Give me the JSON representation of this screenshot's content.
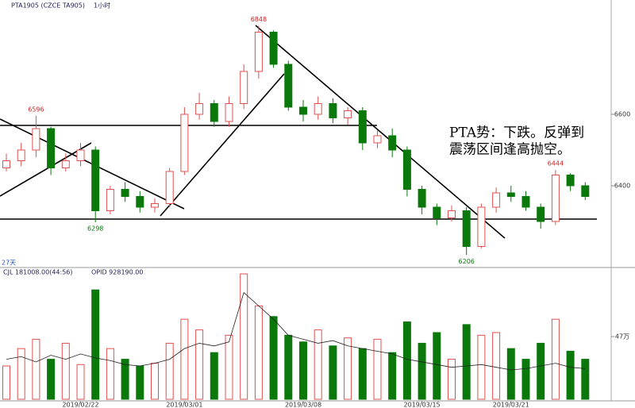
{
  "chart_data": {
    "type": "candlestick",
    "title": "PTA1905 (CZCE TA905)",
    "interval": "1小时",
    "period_label": "27天",
    "volume_header": "CJL 181008.00(44:56)",
    "oi_header": "OPID 928190.00",
    "annotation": [
      "PTA势：下跌。反弹到",
      "震荡区间逢高抛空。"
    ],
    "categories": [
      null,
      null,
      null,
      null,
      null,
      "2019/02/22",
      null,
      null,
      null,
      null,
      null,
      null,
      "2019/03/01",
      null,
      null,
      null,
      null,
      null,
      null,
      null,
      "2019/03/08",
      null,
      null,
      null,
      null,
      null,
      null,
      null,
      "2019/03/15",
      null,
      null,
      null,
      null,
      null,
      "2019/03/21",
      null,
      null,
      null,
      null,
      null
    ],
    "opens": [
      6450,
      6470,
      6500,
      6560,
      6450,
      6470,
      6500,
      6330,
      6390,
      6370,
      6340,
      6350,
      6440,
      6600,
      6630,
      6580,
      6630,
      6720,
      6830,
      6740,
      6620,
      6600,
      6630,
      6590,
      6610,
      6520,
      6540,
      6500,
      6390,
      6340,
      6310,
      6330,
      6230,
      6340,
      6380,
      6370,
      6340,
      6300,
      6430,
      6400
    ],
    "highs": [
      6490,
      6520,
      6596,
      6565,
      6490,
      6520,
      6510,
      6400,
      6410,
      6385,
      6365,
      6450,
      6620,
      6660,
      6640,
      6650,
      6740,
      6848,
      6835,
      6750,
      6640,
      6650,
      6645,
      6620,
      6620,
      6555,
      6560,
      6510,
      6400,
      6350,
      6345,
      6340,
      6350,
      6395,
      6400,
      6385,
      6350,
      6444,
      6435,
      6410
    ],
    "lows": [
      6440,
      6455,
      6480,
      6430,
      6440,
      6455,
      6298,
      6320,
      6355,
      6325,
      6325,
      6340,
      6430,
      6585,
      6565,
      6565,
      6615,
      6700,
      6730,
      6610,
      6580,
      6585,
      6575,
      6570,
      6500,
      6505,
      6480,
      6370,
      6320,
      6290,
      6300,
      6206,
      6225,
      6325,
      6355,
      6330,
      6280,
      6290,
      6385,
      6360
    ],
    "closes": [
      6470,
      6500,
      6560,
      6450,
      6470,
      6500,
      6330,
      6390,
      6370,
      6340,
      6350,
      6440,
      6600,
      6630,
      6580,
      6630,
      6720,
      6830,
      6740,
      6620,
      6600,
      6630,
      6590,
      6610,
      6520,
      6540,
      6500,
      6390,
      6340,
      6310,
      6330,
      6230,
      6340,
      6380,
      6370,
      6340,
      6300,
      6430,
      6400,
      6370
    ],
    "price_labels": [
      {
        "kind": "highs",
        "index": 2
      },
      {
        "kind": "lows",
        "index": 6
      },
      {
        "kind": "highs",
        "index": 17
      },
      {
        "kind": "lows",
        "index": 31
      },
      {
        "kind": "highs",
        "index": 37
      }
    ],
    "volumes": [
      250000,
      380000,
      450000,
      300000,
      420000,
      260000,
      820000,
      380000,
      300000,
      250000,
      270000,
      420000,
      600000,
      520000,
      350000,
      480000,
      940000,
      700000,
      620000,
      480000,
      430000,
      520000,
      400000,
      460000,
      380000,
      450000,
      350000,
      580000,
      420000,
      500000,
      300000,
      560000,
      480000,
      500000,
      380000,
      300000,
      420000,
      600000,
      360000,
      300000
    ],
    "oi": {
      "color": "#222222",
      "values": [
        300000,
        320000,
        280000,
        330000,
        300000,
        340000,
        310000,
        290000,
        260000,
        250000,
        270000,
        300000,
        380000,
        420000,
        400000,
        430000,
        800000,
        700000,
        600000,
        480000,
        450000,
        420000,
        440000,
        400000,
        380000,
        360000,
        340000,
        300000,
        280000,
        260000,
        240000,
        250000,
        260000,
        240000,
        220000,
        230000,
        250000,
        270000,
        240000,
        230000
      ]
    },
    "up_color": "#e05050",
    "down_color": "#0a780a",
    "ylim": [
      6180,
      6920
    ],
    "yticks": [
      6400,
      6600
    ],
    "y2lim": [
      0,
      970000
    ],
    "y2ticks": [
      {
        "value": 470000,
        "label": "47万"
      }
    ]
  }
}
